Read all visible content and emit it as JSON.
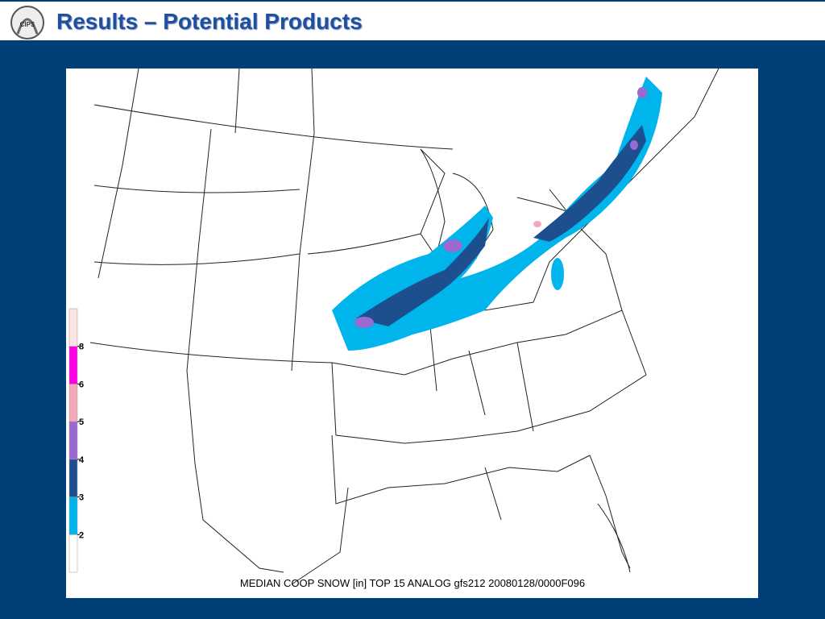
{
  "header": {
    "title": "Results – Potential Products",
    "logo_text": "CIPS"
  },
  "map": {
    "caption": "MEDIAN COOP SNOW [in] TOP 15 ANALOG gfs212 20080128/0000F096",
    "legend": {
      "ticks": [
        2,
        3,
        4,
        5,
        6,
        8
      ],
      "colors": [
        "#ffffff",
        "#00b4ec",
        "#1d4f8f",
        "#9a6ad0",
        "#f2a9b8",
        "#ff00e6",
        "#fbe3e3"
      ]
    }
  }
}
